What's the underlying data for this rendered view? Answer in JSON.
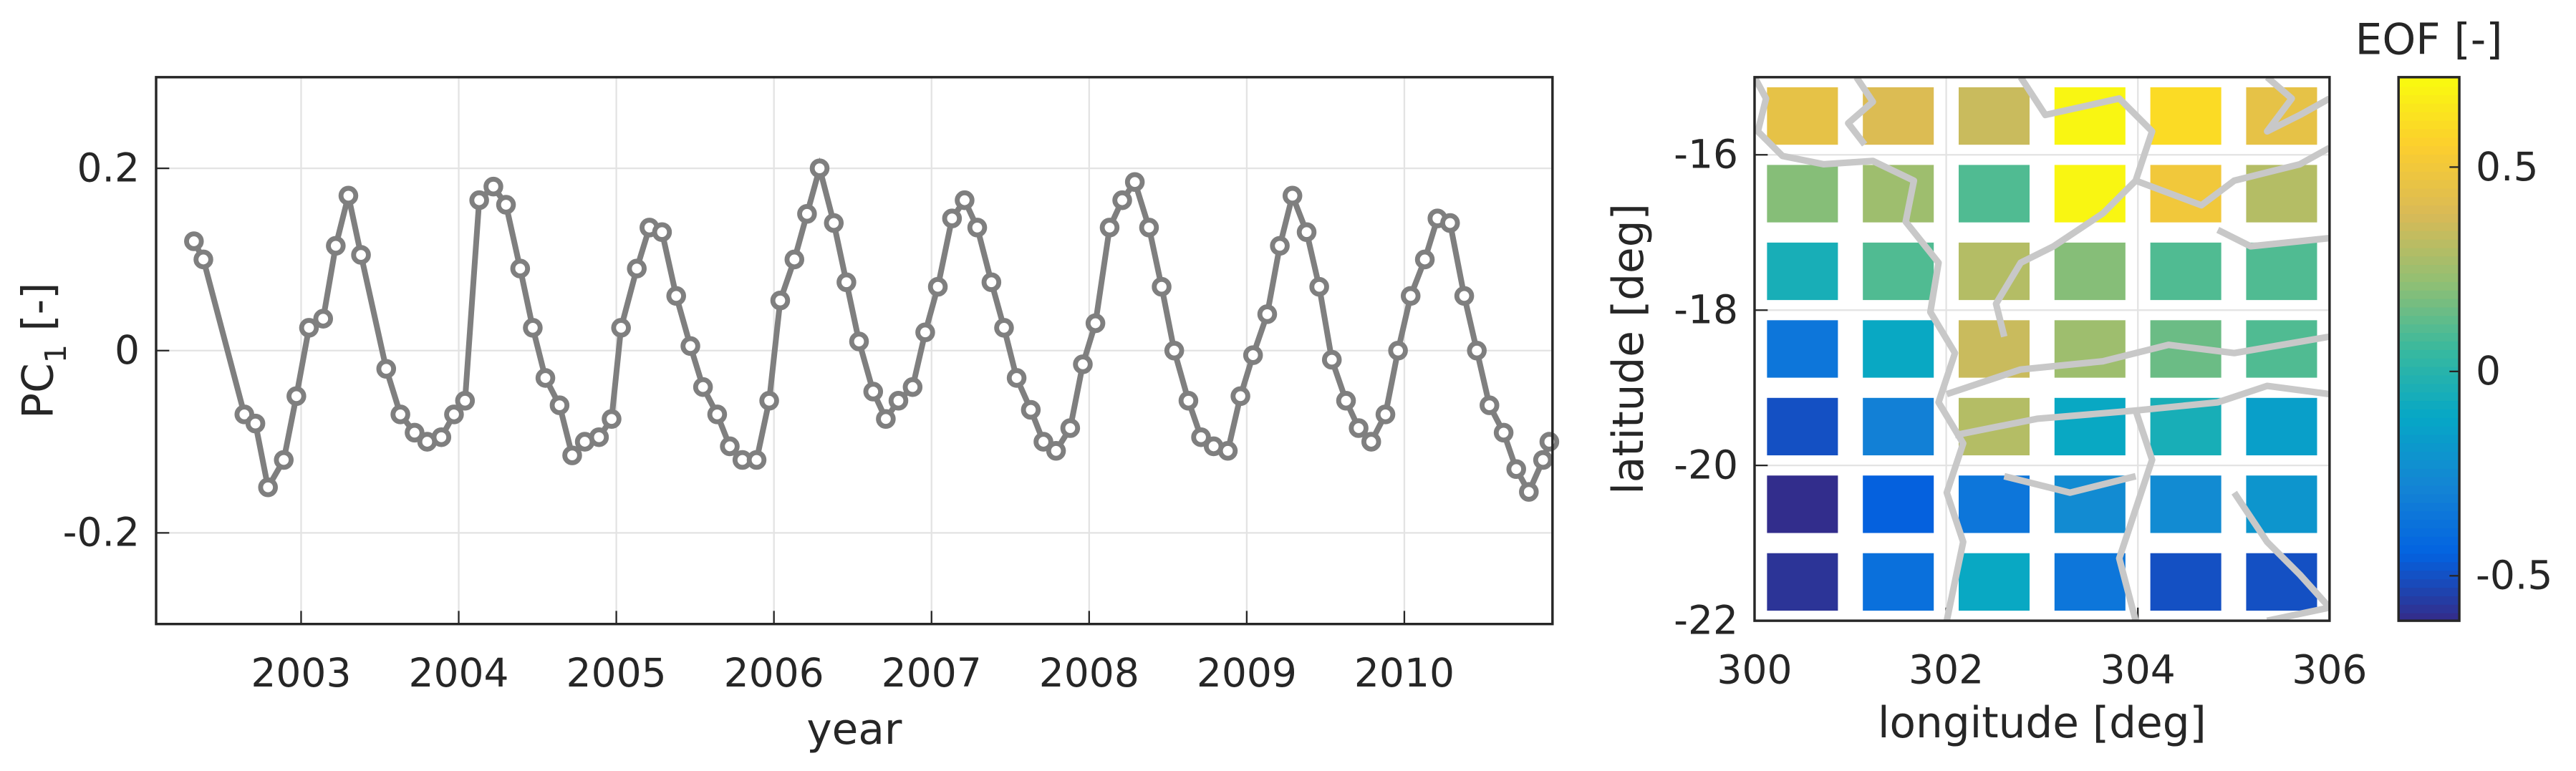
{
  "chart_data": [
    {
      "type": "line",
      "xlabel": "year",
      "ylabel": [
        "PC",
        "1",
        "[-]"
      ],
      "x": [
        2002.32,
        2002.38,
        2002.64,
        2002.71,
        2002.79,
        2002.89,
        2002.97,
        2003.05,
        2003.14,
        2003.22,
        2003.3,
        2003.38,
        2003.54,
        2003.63,
        2003.72,
        2003.8,
        2003.89,
        2003.97,
        2004.04,
        2004.13,
        2004.22,
        2004.3,
        2004.39,
        2004.47,
        2004.55,
        2004.64,
        2004.72,
        2004.8,
        2004.89,
        2004.97,
        2005.03,
        2005.13,
        2005.21,
        2005.29,
        2005.38,
        2005.47,
        2005.55,
        2005.64,
        2005.72,
        2005.8,
        2005.89,
        2005.97,
        2006.04,
        2006.13,
        2006.21,
        2006.29,
        2006.38,
        2006.46,
        2006.54,
        2006.63,
        2006.71,
        2006.79,
        2006.88,
        2006.96,
        2007.04,
        2007.13,
        2007.21,
        2007.29,
        2007.38,
        2007.46,
        2007.54,
        2007.63,
        2007.71,
        2007.79,
        2007.88,
        2007.96,
        2008.04,
        2008.13,
        2008.21,
        2008.29,
        2008.38,
        2008.46,
        2008.54,
        2008.63,
        2008.71,
        2008.79,
        2008.88,
        2008.96,
        2009.04,
        2009.13,
        2009.21,
        2009.29,
        2009.38,
        2009.46,
        2009.54,
        2009.63,
        2009.71,
        2009.79,
        2009.88,
        2009.96,
        2010.04,
        2010.13,
        2010.21,
        2010.29,
        2010.38,
        2010.46,
        2010.54,
        2010.63,
        2010.71,
        2010.79,
        2010.88,
        2010.92
      ],
      "series": [
        {
          "color": "#7f7f7f",
          "values": [
            0.12,
            0.1,
            -0.07,
            -0.08,
            -0.15,
            -0.12,
            -0.05,
            0.025,
            0.035,
            0.115,
            0.17,
            0.105,
            -0.02,
            -0.07,
            -0.09,
            -0.1,
            -0.095,
            -0.07,
            -0.055,
            0.165,
            0.18,
            0.16,
            0.09,
            0.025,
            -0.03,
            -0.06,
            -0.115,
            -0.1,
            -0.095,
            -0.075,
            0.025,
            0.09,
            0.135,
            0.13,
            0.06,
            0.005,
            -0.04,
            -0.07,
            -0.105,
            -0.12,
            -0.12,
            -0.055,
            0.055,
            0.1,
            0.15,
            0.2,
            0.14,
            0.075,
            0.01,
            -0.045,
            -0.075,
            -0.055,
            -0.04,
            0.02,
            0.07,
            0.145,
            0.165,
            0.135,
            0.075,
            0.025,
            -0.03,
            -0.065,
            -0.1,
            -0.11,
            -0.085,
            -0.015,
            0.03,
            0.135,
            0.165,
            0.185,
            0.135,
            0.07,
            0,
            -0.055,
            -0.095,
            -0.105,
            -0.11,
            -0.05,
            -0.005,
            0.04,
            0.115,
            0.17,
            0.13,
            0.07,
            -0.01,
            -0.055,
            -0.085,
            -0.1,
            -0.07,
            0,
            0.06,
            0.1,
            0.145,
            0.14,
            0.06,
            0,
            -0.06,
            -0.09,
            -0.13,
            -0.155,
            -0.12,
            -0.1
          ]
        }
      ],
      "xlim": [
        2002.08,
        2010.94
      ],
      "xticks": [
        2003,
        2004,
        2005,
        2006,
        2007,
        2008,
        2009,
        2010
      ],
      "ylim": [
        -0.3,
        0.3
      ],
      "yticks": [
        -0.2,
        0,
        0.2
      ],
      "grid": true
    },
    {
      "type": "heatmap",
      "xlabel": "longitude [deg]",
      "ylabel": "latitude [deg]",
      "x": [
        300.5,
        301.5,
        302.5,
        303.5,
        304.5,
        305.5
      ],
      "y": [
        -15.5,
        -16.5,
        -17.5,
        -18.5,
        -19.5,
        -20.5,
        -21.5
      ],
      "values": [
        [
          0.45,
          0.4,
          0.35,
          0.7,
          0.6,
          0.45
        ],
        [
          0.2,
          0.25,
          0.1,
          0.7,
          0.5,
          0.3
        ],
        [
          -0.05,
          0.1,
          0.3,
          0.2,
          0.1,
          0.1
        ],
        [
          -0.35,
          -0.1,
          0.35,
          0.25,
          0.15,
          0.1
        ],
        [
          -0.5,
          -0.3,
          0.3,
          -0.1,
          -0.05,
          -0.15
        ],
        [
          -0.6,
          -0.45,
          -0.35,
          -0.25,
          -0.25,
          -0.2
        ],
        [
          -0.58,
          -0.38,
          -0.1,
          -0.35,
          -0.5,
          -0.5
        ]
      ],
      "xlim": [
        300,
        306
      ],
      "xticks": [
        300,
        302,
        304,
        306
      ],
      "ylim": [
        -22,
        -15
      ],
      "yticks": [
        -22,
        -20,
        -18,
        -16
      ],
      "grid": true,
      "colormap": "parula",
      "colorbar": {
        "label": "EOF [-]",
        "lim": [
          -0.61,
          0.72
        ],
        "ticks": [
          -0.5,
          0,
          0.5
        ]
      }
    }
  ]
}
